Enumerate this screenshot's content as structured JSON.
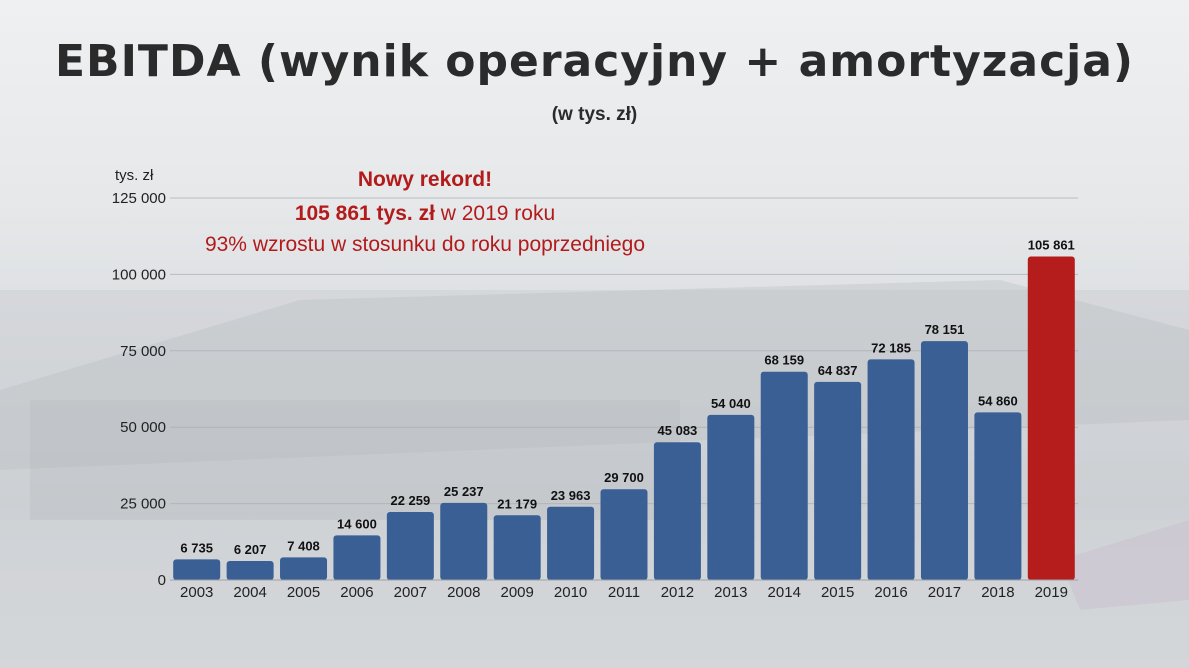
{
  "colors": {
    "bar": "#3a5f94",
    "highlight": "#b51c1c",
    "title": "#2b2b2b",
    "annotation": "#b31b1b"
  },
  "annotation": {
    "line1": "Nowy rekord!",
    "line2_bold": "105 861 tys. zł",
    "line2_rest": " w 2019 roku",
    "line3": "93% wzrostu w stosunku do roku poprzedniego"
  },
  "chart_data": {
    "type": "bar",
    "title": "EBITDA (wynik operacyjny + amortyzacja)",
    "subtitle": "(w tys. zł)",
    "ylabel": "tys. zł",
    "xlabel": "",
    "categories": [
      "2003",
      "2004",
      "2005",
      "2006",
      "2007",
      "2008",
      "2009",
      "2010",
      "2011",
      "2012",
      "2013",
      "2014",
      "2015",
      "2016",
      "2017",
      "2018",
      "2019"
    ],
    "values": [
      6735,
      6207,
      7408,
      14600,
      22259,
      25237,
      21179,
      23963,
      29700,
      45083,
      54040,
      68159,
      64837,
      72185,
      78151,
      54860,
      105861
    ],
    "data_labels": [
      "6 735",
      "6 207",
      "7 408",
      "14 600",
      "22 259",
      "25 237",
      "21 179",
      "23 963",
      "29 700",
      "45 083",
      "54 040",
      "68 159",
      "64 837",
      "72 185",
      "78 151",
      "54 860",
      "105 861"
    ],
    "yticks": [
      0,
      25000,
      50000,
      75000,
      100000,
      125000
    ],
    "ytick_labels": [
      "0",
      "25 000",
      "50 000",
      "75 000",
      "100 000",
      "125 000"
    ],
    "ylim": [
      0,
      125000
    ],
    "highlight_category": "2019",
    "grid": true,
    "legend": "none"
  }
}
